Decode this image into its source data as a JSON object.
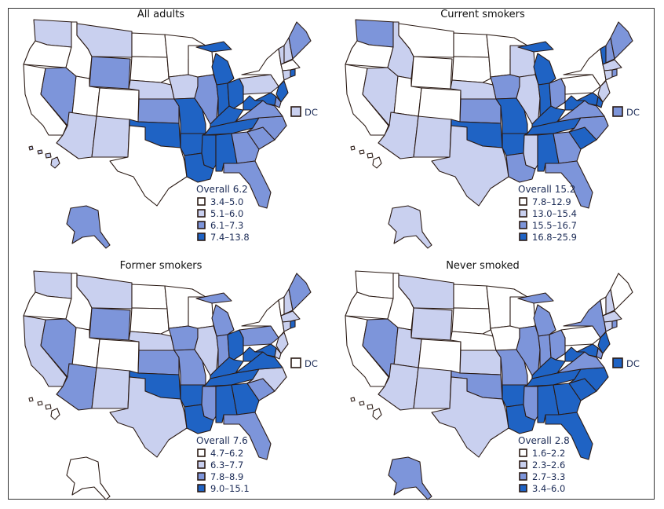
{
  "colors": [
    "#ffffff",
    "#c9d0ef",
    "#7d95da",
    "#1f63c4"
  ],
  "dc_label": "DC",
  "panels": [
    {
      "title": "All adults",
      "legend_title": "Overall 6.2",
      "legend": [
        "3.4–5.0",
        "5.1–6.0",
        "6.1–7.3",
        "7.4–13.8"
      ],
      "classes": {
        "WA": 1,
        "OR": 0,
        "CA": 0,
        "ID": 0,
        "NV": 2,
        "MT": 1,
        "WY": 2,
        "UT": 0,
        "CO": 0,
        "AZ": 1,
        "NM": 1,
        "ND": 0,
        "SD": 0,
        "NE": 1,
        "KS": 2,
        "OK": 3,
        "TX": 0,
        "MN": 0,
        "IA": 1,
        "MO": 3,
        "AR": 3,
        "LA": 3,
        "WI": 0,
        "IL": 2,
        "MI": 3,
        "IN": 3,
        "OH": 3,
        "KY": 3,
        "TN": 3,
        "MS": 3,
        "AL": 3,
        "GA": 2,
        "FL": 2,
        "SC": 2,
        "NC": 2,
        "VA": 2,
        "WV": 3,
        "PA": 1,
        "NY": 0,
        "VT": 1,
        "NH": 1,
        "ME": 2,
        "MA": 0,
        "CT": 1,
        "RI": 3,
        "NJ": 3,
        "DE": 2,
        "MD": 3,
        "DC": 1,
        "AK": 2,
        "HI": 1
      }
    },
    {
      "title": "Current smokers",
      "legend_title": "Overall 15.2",
      "legend": [
        "7.8–12.9",
        "13.0–15.4",
        "15.5–16.7",
        "16.8–25.9"
      ],
      "classes": {
        "WA": 2,
        "OR": 0,
        "CA": 0,
        "ID": 1,
        "NV": 1,
        "MT": 0,
        "WY": 0,
        "UT": 0,
        "CO": 0,
        "AZ": 1,
        "NM": 1,
        "ND": 0,
        "SD": 0,
        "NE": 1,
        "KS": 2,
        "OK": 3,
        "TX": 1,
        "MN": 0,
        "IA": 2,
        "MO": 3,
        "AR": 3,
        "LA": 2,
        "WI": 1,
        "IL": 1,
        "MI": 3,
        "IN": 3,
        "OH": 2,
        "KY": 3,
        "TN": 3,
        "MS": 1,
        "AL": 3,
        "GA": 2,
        "FL": 2,
        "SC": 3,
        "NC": 2,
        "VA": 2,
        "WV": 3,
        "PA": 0,
        "NY": 0,
        "VT": 3,
        "NH": 2,
        "ME": 2,
        "MA": 1,
        "CT": 1,
        "RI": 2,
        "NJ": 1,
        "DE": 3,
        "MD": 3,
        "DC": 2,
        "AK": 1,
        "HI": 0
      }
    },
    {
      "title": "Former smokers",
      "legend_title": "Overall 7.6",
      "legend": [
        "4.7–6.2",
        "6.3–7.7",
        "7.8–8.9",
        "9.0–15.1"
      ],
      "classes": {
        "WA": 1,
        "OR": 0,
        "CA": 1,
        "ID": 0,
        "NV": 2,
        "MT": 1,
        "WY": 2,
        "UT": 0,
        "CO": 0,
        "AZ": 2,
        "NM": 1,
        "ND": 0,
        "SD": 0,
        "NE": 1,
        "KS": 2,
        "OK": 3,
        "TX": 1,
        "MN": 0,
        "IA": 2,
        "MO": 2,
        "AR": 3,
        "LA": 3,
        "WI": 0,
        "IL": 1,
        "MI": 2,
        "IN": 2,
        "OH": 3,
        "KY": 3,
        "TN": 3,
        "MS": 2,
        "AL": 3,
        "GA": 3,
        "FL": 2,
        "SC": 2,
        "NC": 1,
        "VA": 3,
        "WV": 3,
        "PA": 2,
        "NY": 0,
        "VT": 0,
        "NH": 1,
        "ME": 2,
        "MA": 1,
        "CT": 1,
        "RI": 3,
        "NJ": 1,
        "DE": 1,
        "MD": 3,
        "DC": 0,
        "AK": 0,
        "HI": 0
      }
    },
    {
      "title": "Never smoked",
      "legend_title": "Overall 2.8",
      "legend": [
        "1.6–2.2",
        "2.3–2.6",
        "2.7–3.3",
        "3.4–6.0"
      ],
      "classes": {
        "WA": 0,
        "OR": 0,
        "CA": 0,
        "ID": 0,
        "NV": 2,
        "MT": 1,
        "WY": 1,
        "UT": 1,
        "CO": 0,
        "AZ": 1,
        "NM": 1,
        "ND": 0,
        "SD": 0,
        "NE": 0,
        "KS": 1,
        "OK": 2,
        "TX": 1,
        "MN": 0,
        "IA": 0,
        "MO": 2,
        "AR": 3,
        "LA": 3,
        "WI": 0,
        "IL": 2,
        "MI": 2,
        "IN": 2,
        "OH": 2,
        "KY": 3,
        "TN": 3,
        "MS": 2,
        "AL": 3,
        "GA": 3,
        "FL": 3,
        "SC": 3,
        "NC": 3,
        "VA": 2,
        "WV": 3,
        "PA": 0,
        "NY": 2,
        "VT": 0,
        "NH": 1,
        "ME": 0,
        "MA": 1,
        "CT": 1,
        "RI": 2,
        "NJ": 3,
        "DE": 2,
        "MD": 3,
        "DC": 3,
        "AK": 2,
        "HI": 0
      }
    }
  ]
}
